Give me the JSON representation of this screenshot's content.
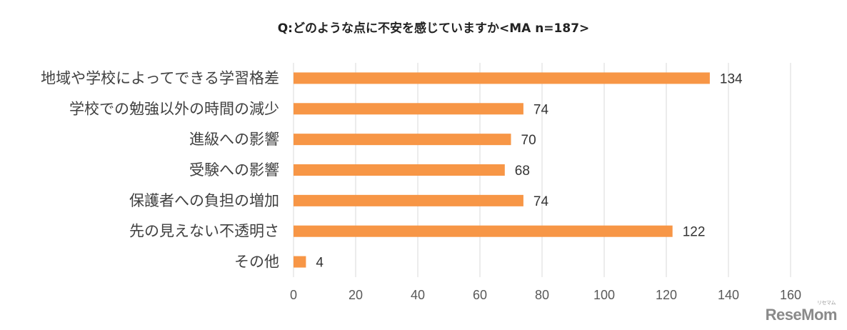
{
  "chart_data": {
    "type": "bar",
    "orientation": "horizontal",
    "title": "Q:どのような点に不安を感じていますか<MA n=187>",
    "categories": [
      "地域や学校によってできる学習格差",
      "学校での勉強以外の時間の減少",
      "進級への影響",
      "受験への影響",
      "保護者への負担の増加",
      "先の見えない不透明さ",
      "その他"
    ],
    "values": [
      134,
      74,
      70,
      68,
      74,
      122,
      4
    ],
    "xlim": [
      0,
      160
    ],
    "x_ticks": [
      "0",
      "20",
      "40",
      "60",
      "80",
      "100",
      "120",
      "140",
      "160"
    ],
    "grid": true,
    "bar_color": "#f79646",
    "data_labels": true
  },
  "branding": {
    "logo_text": "ReseMom",
    "logo_ruby": "リセマム"
  }
}
